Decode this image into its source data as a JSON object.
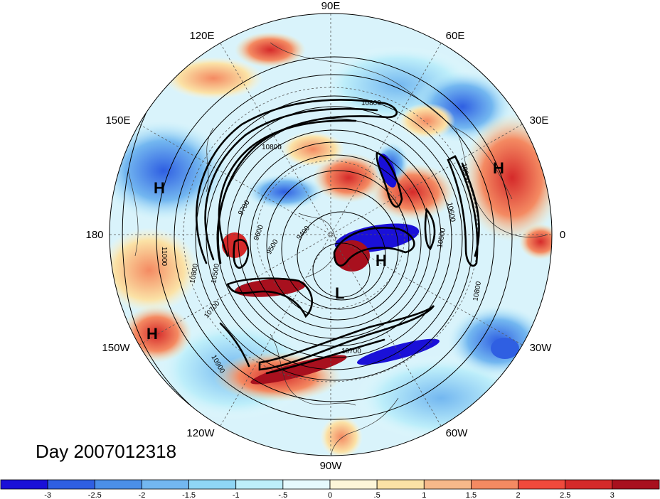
{
  "map": {
    "day_label": "Day 2007012318",
    "longitude_labels": [
      "90E",
      "60E",
      "30E",
      "0",
      "30W",
      "60W",
      "90W",
      "120W",
      "150W",
      "180",
      "150E",
      "120E"
    ],
    "pressure_centers": [
      {
        "label": "H",
        "region": "eastern Atlantic / Europe"
      },
      {
        "label": "H",
        "region": "western Pacific"
      },
      {
        "label": "H",
        "region": "eastern Pacific"
      },
      {
        "label": "H",
        "region": "Greenland / North Atlantic"
      },
      {
        "label": "L",
        "region": "Canadian Arctic"
      }
    ],
    "contour_labels": [
      "10800",
      "10900",
      "10600",
      "10500",
      "10800",
      "11000",
      "10800",
      "10500",
      "10700",
      "10900",
      "9700",
      "9600",
      "9500",
      "9400",
      "10700",
      "10800"
    ],
    "colors": {
      "neg_strong": "#1a1ad8",
      "neg_mid": "#4b8fe8",
      "neg_light": "#a9e4f5",
      "neutral": "#fdf6d9",
      "pos_light": "#f7b98a",
      "pos_mid": "#f04a3c",
      "pos_strong": "#a8101e"
    }
  },
  "colorbar": {
    "colors": [
      "#1a10d8",
      "#2f5fe2",
      "#4b8fe8",
      "#73b7f0",
      "#8fd6f5",
      "#bdeefa",
      "#e6f9fd",
      "#fdf6d9",
      "#fbe2a6",
      "#f7b98a",
      "#f48a62",
      "#f04a3c",
      "#d52a2a",
      "#a8101e"
    ],
    "tick_labels": [
      "-3",
      "-2.5",
      "-2",
      "-1.5",
      "-1",
      "-.5",
      "0",
      ".5",
      "1",
      "1.5",
      "2",
      "2.5",
      "3"
    ]
  }
}
